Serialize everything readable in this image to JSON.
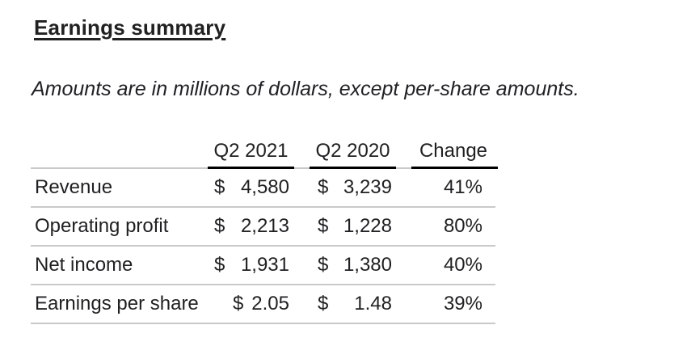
{
  "page": {
    "title": "Earnings summary",
    "subtitle": "Amounts are in millions of dollars, except per-share amounts."
  },
  "table": {
    "columns": [
      "",
      "Q2 2021",
      "Q2 2020",
      "Change"
    ],
    "rows": [
      {
        "label": "Revenue",
        "currency": "$",
        "q2_2021": "4,580",
        "q2_2020": "3,239",
        "change": "41%"
      },
      {
        "label": "Operating profit",
        "currency": "$",
        "q2_2021": "2,213",
        "q2_2020": "1,228",
        "change": "80%"
      },
      {
        "label": "Net income",
        "currency": "$",
        "q2_2021": "1,931",
        "q2_2020": "1,380",
        "change": "40%"
      },
      {
        "label": "Earnings per share",
        "currency": "$",
        "q2_2021": "2.05",
        "q2_2020": "1.48",
        "change": "39%"
      }
    ]
  },
  "colors": {
    "background": "#ffffff",
    "text": "#202124",
    "header_rule_black": "#000000",
    "row_rule_gray": "#c9c9c9"
  }
}
